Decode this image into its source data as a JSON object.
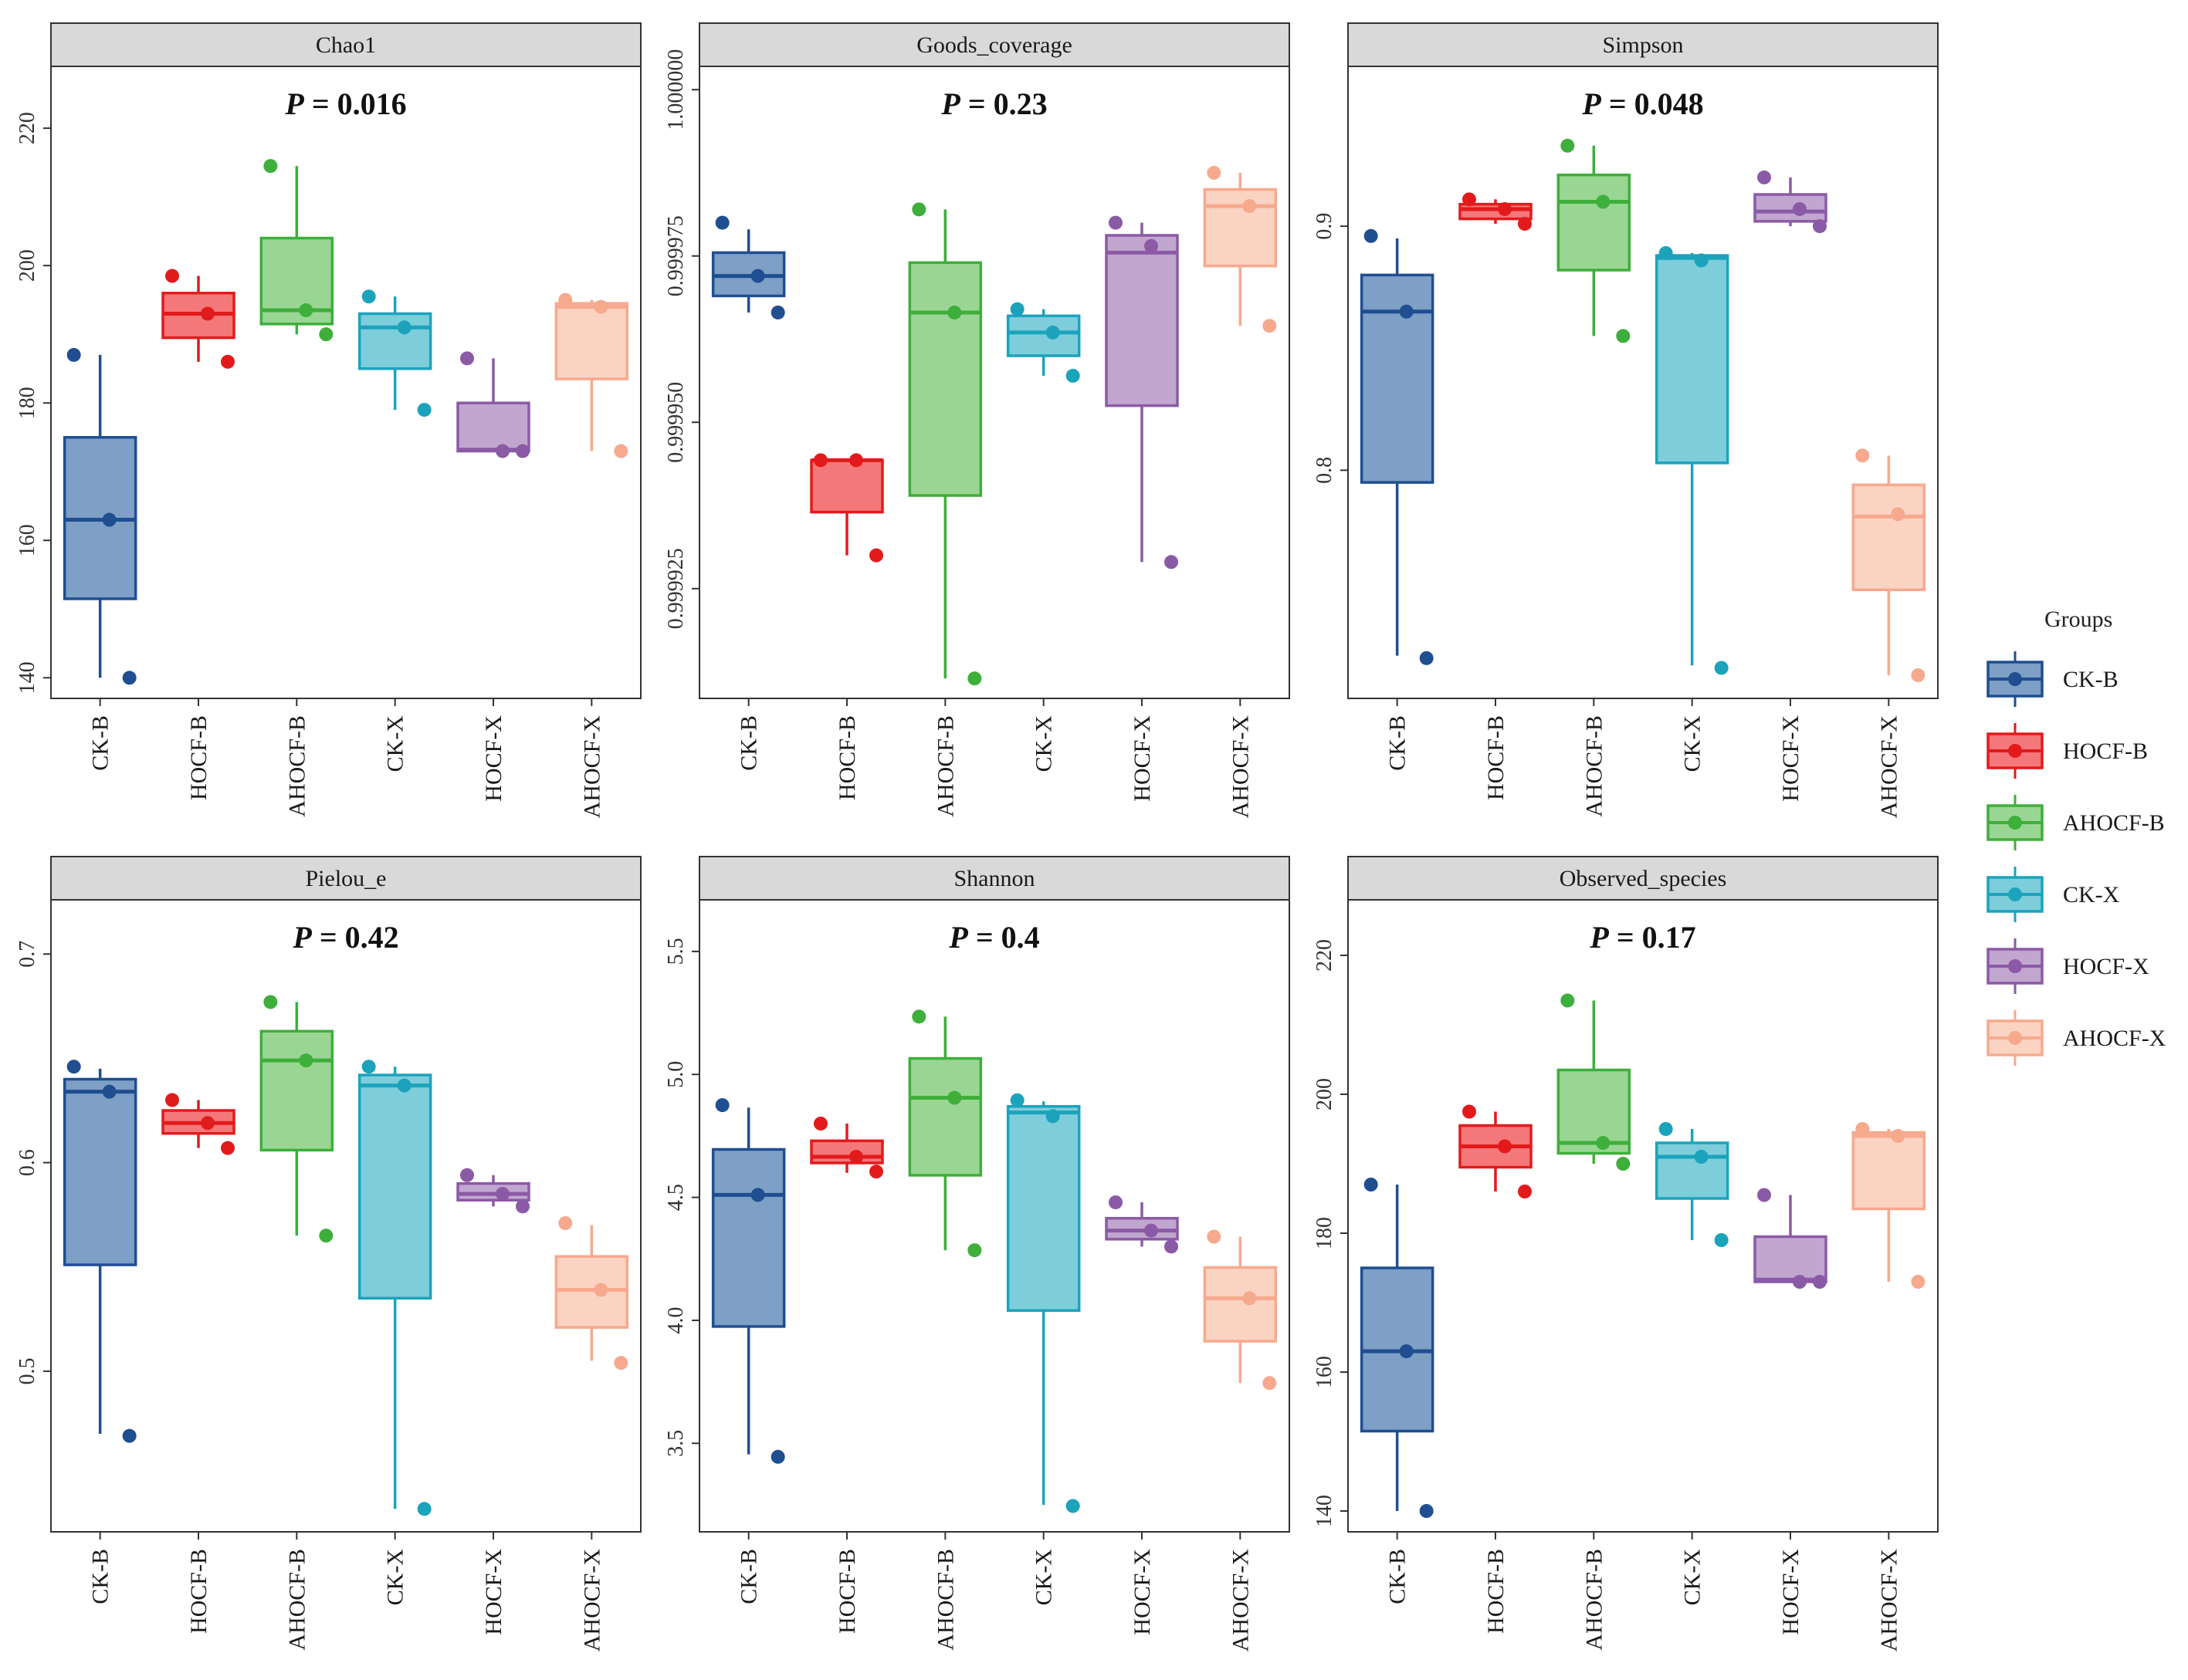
{
  "figure": {
    "groups_title": "Groups",
    "legend": [
      {
        "label": "CK-B",
        "color": "#1F4E91",
        "fill": "#7E9FC6"
      },
      {
        "label": "HOCF-B",
        "color": "#E31A1C",
        "fill": "#F4787A"
      },
      {
        "label": "AHOCF-B",
        "color": "#3DAF3A",
        "fill": "#9AD693"
      },
      {
        "label": "CK-X",
        "color": "#1BA3BC",
        "fill": "#7ECDDB"
      },
      {
        "label": "HOCF-X",
        "color": "#8B5AA6",
        "fill": "#C1A6CF"
      },
      {
        "label": "AHOCF-X",
        "color": "#F7A98E",
        "fill": "#FBD3C3"
      }
    ]
  },
  "chart_data": [
    {
      "type": "box",
      "title": "Chao1",
      "p_label": "P",
      "p_value": "= 0.016",
      "categories": [
        "CK-B",
        "HOCF-B",
        "AHOCF-B",
        "CK-X",
        "HOCF-X",
        "AHOCF-X"
      ],
      "ylim": [
        137,
        229
      ],
      "yticks": [
        {
          "v": 140,
          "label": "140"
        },
        {
          "v": 160,
          "label": "160"
        },
        {
          "v": 180,
          "label": "180"
        },
        {
          "v": 200,
          "label": "200"
        },
        {
          "v": 220,
          "label": "220"
        }
      ],
      "boxes": [
        {
          "q1": 151.5,
          "median": 163,
          "q3": 175,
          "wlo": 140,
          "whi": 187,
          "points": [
            187,
            163,
            140
          ]
        },
        {
          "q1": 189.5,
          "median": 193,
          "q3": 196,
          "wlo": 186,
          "whi": 198.5,
          "points": [
            198.5,
            193,
            186
          ]
        },
        {
          "q1": 191.5,
          "median": 193.5,
          "q3": 204,
          "wlo": 190,
          "whi": 214.5,
          "points": [
            214.5,
            193.5,
            190
          ]
        },
        {
          "q1": 185,
          "median": 191,
          "q3": 193,
          "wlo": 179,
          "whi": 195.5,
          "points": [
            195.5,
            191,
            179
          ]
        },
        {
          "q1": 173,
          "median": 173.2,
          "q3": 180,
          "wlo": 173,
          "whi": 186.5,
          "points": [
            186.5,
            173,
            173
          ]
        },
        {
          "q1": 183.5,
          "median": 194,
          "q3": 194.5,
          "wlo": 173,
          "whi": 195,
          "points": [
            195,
            194,
            173
          ]
        }
      ]
    },
    {
      "type": "box",
      "title": "Goods_coverage",
      "p_label": "P",
      "p_value": "= 0.23",
      "categories": [
        "CK-B",
        "HOCF-B",
        "AHOCF-B",
        "CK-X",
        "HOCF-X",
        "AHOCF-X"
      ],
      "ylim": [
        0.9999085,
        1.0000035
      ],
      "yticks": [
        {
          "v": 0.999925,
          "label": "0.999925"
        },
        {
          "v": 0.99995,
          "label": "0.999950"
        },
        {
          "v": 0.999975,
          "label": "0.999975"
        },
        {
          "v": 1.0,
          "label": "1.000000"
        }
      ],
      "boxes": [
        {
          "q1": 0.999969,
          "median": 0.999972,
          "q3": 0.9999755,
          "wlo": 0.9999665,
          "whi": 0.999979,
          "points": [
            0.99998,
            0.999972,
            0.9999665
          ]
        },
        {
          "q1": 0.9999365,
          "median": 0.9999443,
          "q3": 0.9999443,
          "wlo": 0.99993,
          "whi": 0.9999443,
          "points": [
            0.9999443,
            0.9999443,
            0.99993
          ]
        },
        {
          "q1": 0.999939,
          "median": 0.9999665,
          "q3": 0.999974,
          "wlo": 0.9999115,
          "whi": 0.999982,
          "points": [
            0.999982,
            0.9999665,
            0.9999115
          ]
        },
        {
          "q1": 0.99996,
          "median": 0.9999635,
          "q3": 0.999966,
          "wlo": 0.999957,
          "whi": 0.999967,
          "points": [
            0.999967,
            0.9999635,
            0.999957
          ]
        },
        {
          "q1": 0.9999525,
          "median": 0.9999755,
          "q3": 0.9999781,
          "wlo": 0.999929,
          "whi": 0.99998,
          "points": [
            0.99998,
            0.9999765,
            0.999929
          ]
        },
        {
          "q1": 0.9999735,
          "median": 0.9999825,
          "q3": 0.999985,
          "wlo": 0.9999645,
          "whi": 0.9999875,
          "points": [
            0.9999875,
            0.9999825,
            0.9999645
          ]
        }
      ]
    },
    {
      "type": "box",
      "title": "Simpson",
      "p_label": "P",
      "p_value": "= 0.048",
      "categories": [
        "CK-B",
        "HOCF-B",
        "AHOCF-B",
        "CK-X",
        "HOCF-X",
        "AHOCF-X"
      ],
      "ylim": [
        0.7065,
        0.9655
      ],
      "yticks": [
        {
          "v": 0.8,
          "label": "0.8"
        },
        {
          "v": 0.9,
          "label": "0.9"
        }
      ],
      "boxes": [
        {
          "q1": 0.795,
          "median": 0.865,
          "q3": 0.88,
          "wlo": 0.724,
          "whi": 0.895,
          "points": [
            0.896,
            0.865,
            0.723
          ]
        },
        {
          "q1": 0.903,
          "median": 0.907,
          "q3": 0.909,
          "wlo": 0.901,
          "whi": 0.911,
          "points": [
            0.911,
            0.907,
            0.901
          ]
        },
        {
          "q1": 0.882,
          "median": 0.91,
          "q3": 0.921,
          "wlo": 0.855,
          "whi": 0.933,
          "points": [
            0.933,
            0.91,
            0.855
          ]
        },
        {
          "q1": 0.803,
          "median": 0.887,
          "q3": 0.888,
          "wlo": 0.72,
          "whi": 0.889,
          "points": [
            0.889,
            0.886,
            0.719
          ]
        },
        {
          "q1": 0.902,
          "median": 0.906,
          "q3": 0.913,
          "wlo": 0.9,
          "whi": 0.92,
          "points": [
            0.92,
            0.907,
            0.9
          ]
        },
        {
          "q1": 0.751,
          "median": 0.781,
          "q3": 0.794,
          "wlo": 0.716,
          "whi": 0.806,
          "points": [
            0.806,
            0.782,
            0.716
          ]
        }
      ]
    },
    {
      "type": "box",
      "title": "Pielou_e",
      "p_label": "P",
      "p_value": "= 0.42",
      "categories": [
        "CK-B",
        "HOCF-B",
        "AHOCF-B",
        "CK-X",
        "HOCF-X",
        "AHOCF-X"
      ],
      "ylim": [
        0.423,
        0.726
      ],
      "yticks": [
        {
          "v": 0.5,
          "label": "0.5"
        },
        {
          "v": 0.6,
          "label": "0.6"
        },
        {
          "v": 0.7,
          "label": "0.7"
        }
      ],
      "boxes": [
        {
          "q1": 0.551,
          "median": 0.634,
          "q3": 0.64,
          "wlo": 0.47,
          "whi": 0.645,
          "points": [
            0.646,
            0.634,
            0.469
          ]
        },
        {
          "q1": 0.614,
          "median": 0.619,
          "q3": 0.625,
          "wlo": 0.607,
          "whi": 0.63,
          "points": [
            0.63,
            0.619,
            0.607
          ]
        },
        {
          "q1": 0.606,
          "median": 0.649,
          "q3": 0.663,
          "wlo": 0.565,
          "whi": 0.677,
          "points": [
            0.677,
            0.649,
            0.565
          ]
        },
        {
          "q1": 0.535,
          "median": 0.637,
          "q3": 0.642,
          "wlo": 0.434,
          "whi": 0.646,
          "points": [
            0.646,
            0.637,
            0.434
          ]
        },
        {
          "q1": 0.582,
          "median": 0.585,
          "q3": 0.59,
          "wlo": 0.579,
          "whi": 0.594,
          "points": [
            0.594,
            0.585,
            0.579
          ]
        },
        {
          "q1": 0.521,
          "median": 0.539,
          "q3": 0.555,
          "wlo": 0.505,
          "whi": 0.57,
          "points": [
            0.571,
            0.539,
            0.504
          ]
        }
      ]
    },
    {
      "type": "box",
      "title": "Shannon",
      "p_label": "P",
      "p_value": "= 0.4",
      "categories": [
        "CK-B",
        "HOCF-B",
        "AHOCF-B",
        "CK-X",
        "HOCF-X",
        "AHOCF-X"
      ],
      "ylim": [
        3.14,
        5.71
      ],
      "yticks": [
        {
          "v": 3.5,
          "label": "3.5"
        },
        {
          "v": 4.0,
          "label": "4.0"
        },
        {
          "v": 4.5,
          "label": "4.5"
        },
        {
          "v": 5.0,
          "label": "5.0"
        },
        {
          "v": 5.5,
          "label": "5.5"
        }
      ],
      "boxes": [
        {
          "q1": 3.975,
          "median": 4.51,
          "q3": 4.695,
          "wlo": 3.455,
          "whi": 4.865,
          "points": [
            4.875,
            4.51,
            3.445
          ]
        },
        {
          "q1": 4.64,
          "median": 4.665,
          "q3": 4.73,
          "wlo": 4.6,
          "whi": 4.8,
          "points": [
            4.8,
            4.665,
            4.605
          ]
        },
        {
          "q1": 4.59,
          "median": 4.905,
          "q3": 5.065,
          "wlo": 4.285,
          "whi": 5.235,
          "points": [
            5.235,
            4.905,
            4.285
          ]
        },
        {
          "q1": 4.04,
          "median": 4.845,
          "q3": 4.87,
          "wlo": 3.25,
          "whi": 4.89,
          "points": [
            4.895,
            4.83,
            3.245
          ]
        },
        {
          "q1": 4.33,
          "median": 4.365,
          "q3": 4.415,
          "wlo": 4.3,
          "whi": 4.48,
          "points": [
            4.48,
            4.365,
            4.3
          ]
        },
        {
          "q1": 3.915,
          "median": 4.09,
          "q3": 4.215,
          "wlo": 3.745,
          "whi": 4.34,
          "points": [
            4.34,
            4.09,
            3.745
          ]
        }
      ]
    },
    {
      "type": "box",
      "title": "Observed_species",
      "p_label": "P",
      "p_value": "= 0.17",
      "categories": [
        "CK-B",
        "HOCF-B",
        "AHOCF-B",
        "CK-X",
        "HOCF-X",
        "AHOCF-X"
      ],
      "ylim": [
        137,
        228
      ],
      "yticks": [
        {
          "v": 140,
          "label": "140"
        },
        {
          "v": 160,
          "label": "160"
        },
        {
          "v": 180,
          "label": "180"
        },
        {
          "v": 200,
          "label": "200"
        },
        {
          "v": 220,
          "label": "220"
        }
      ],
      "boxes": [
        {
          "q1": 151.5,
          "median": 163,
          "q3": 175,
          "wlo": 140,
          "whi": 187,
          "points": [
            187,
            163,
            140
          ]
        },
        {
          "q1": 189.5,
          "median": 192.5,
          "q3": 195.5,
          "wlo": 186,
          "whi": 197.5,
          "points": [
            197.5,
            192.5,
            186
          ]
        },
        {
          "q1": 191.5,
          "median": 193,
          "q3": 203.5,
          "wlo": 190,
          "whi": 213.5,
          "points": [
            213.5,
            193,
            190
          ]
        },
        {
          "q1": 185,
          "median": 191,
          "q3": 193,
          "wlo": 179,
          "whi": 195,
          "points": [
            195,
            191,
            179
          ]
        },
        {
          "q1": 173,
          "median": 173.3,
          "q3": 179.5,
          "wlo": 173,
          "whi": 185.5,
          "points": [
            185.5,
            173,
            173
          ]
        },
        {
          "q1": 183.5,
          "median": 194,
          "q3": 194.5,
          "wlo": 173,
          "whi": 195,
          "points": [
            195,
            194,
            173
          ]
        }
      ]
    }
  ]
}
